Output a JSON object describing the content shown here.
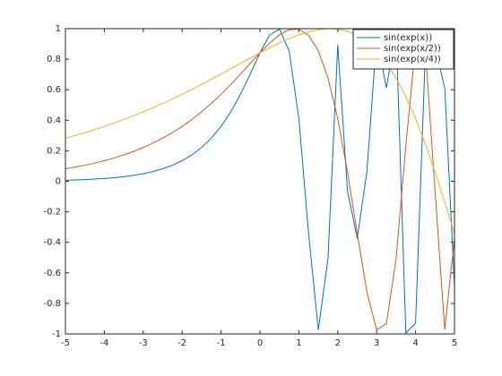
{
  "chart_data": {
    "type": "line",
    "x": [
      -5,
      -4.75,
      -4.5,
      -4.25,
      -4,
      -3.75,
      -3.5,
      -3.25,
      -3,
      -2.75,
      -2.5,
      -2.25,
      -2,
      -1.75,
      -1.5,
      -1.25,
      -1,
      -0.75,
      -0.5,
      -0.25,
      0,
      0.25,
      0.5,
      0.75,
      1,
      1.25,
      1.5,
      1.75,
      2,
      2.25,
      2.5,
      2.75,
      3,
      3.25,
      3.5,
      3.75,
      4,
      4.25,
      4.5,
      4.75,
      5
    ],
    "series": [
      {
        "name": "sin(exp(x))",
        "color": "#0072bd",
        "values": [
          0.0067,
          0.0087,
          0.0111,
          0.0143,
          0.0183,
          0.0235,
          0.0302,
          0.0388,
          0.0498,
          0.0639,
          0.082,
          0.1052,
          0.1349,
          0.1729,
          0.2213,
          0.2826,
          0.3596,
          0.455,
          0.57,
          0.7024,
          0.8415,
          0.9591,
          0.997,
          0.8548,
          0.4108,
          -0.3417,
          -0.9735,
          -0.5043,
          0.8938,
          -0.0629,
          -0.3746,
          0.0653,
          0.9445,
          0.6113,
          0.9917,
          -0.9941,
          -0.9288,
          0.8366,
          0.8864,
          0.6089,
          -0.6877
        ]
      },
      {
        "name": "sin(exp(x/2))",
        "color": "#d95319",
        "values": [
          0.082,
          0.0929,
          0.1052,
          0.1191,
          0.1349,
          0.1528,
          0.1729,
          0.1956,
          0.2213,
          0.2501,
          0.2826,
          0.319,
          0.3596,
          0.4049,
          0.455,
          0.5101,
          0.57,
          0.6346,
          0.7024,
          0.7722,
          0.8415,
          0.9059,
          0.9591,
          0.9932,
          0.997,
          0.956,
          0.8548,
          0.6761,
          0.4108,
          0.0614,
          -0.3417,
          -0.7266,
          -0.9735,
          -0.9337,
          -0.5043,
          0.2354,
          0.8938,
          0.8686,
          -0.0629,
          -0.9702,
          -0.3746
        ]
      },
      {
        "name": "sin(exp(x/4))",
        "color": "#edb120",
        "values": [
          0.2826,
          0.3003,
          0.319,
          0.3388,
          0.3596,
          0.3817,
          0.4049,
          0.4293,
          0.455,
          0.4819,
          0.5101,
          0.5394,
          0.57,
          0.6015,
          0.6346,
          0.668,
          0.7024,
          0.7372,
          0.7722,
          0.8071,
          0.8415,
          0.8746,
          0.9059,
          0.9343,
          0.9591,
          0.979,
          0.9932,
          0.9998,
          0.997,
          0.9831,
          0.956,
          0.9138,
          0.8548,
          0.7759,
          0.6761,
          0.5547,
          0.4108,
          0.2455,
          0.0614,
          -0.1369,
          -0.3417
        ]
      }
    ],
    "xlim": [
      -5,
      5
    ],
    "xticks": [
      -5,
      -4,
      -3,
      -2,
      -1,
      0,
      1,
      2,
      3,
      4,
      5
    ],
    "ylim": [
      -1,
      1
    ],
    "yticks": [
      -1,
      -0.8,
      -0.6,
      -0.4,
      -0.2,
      0,
      0.2,
      0.4,
      0.6,
      0.8,
      1
    ],
    "legend": "top-right"
  }
}
